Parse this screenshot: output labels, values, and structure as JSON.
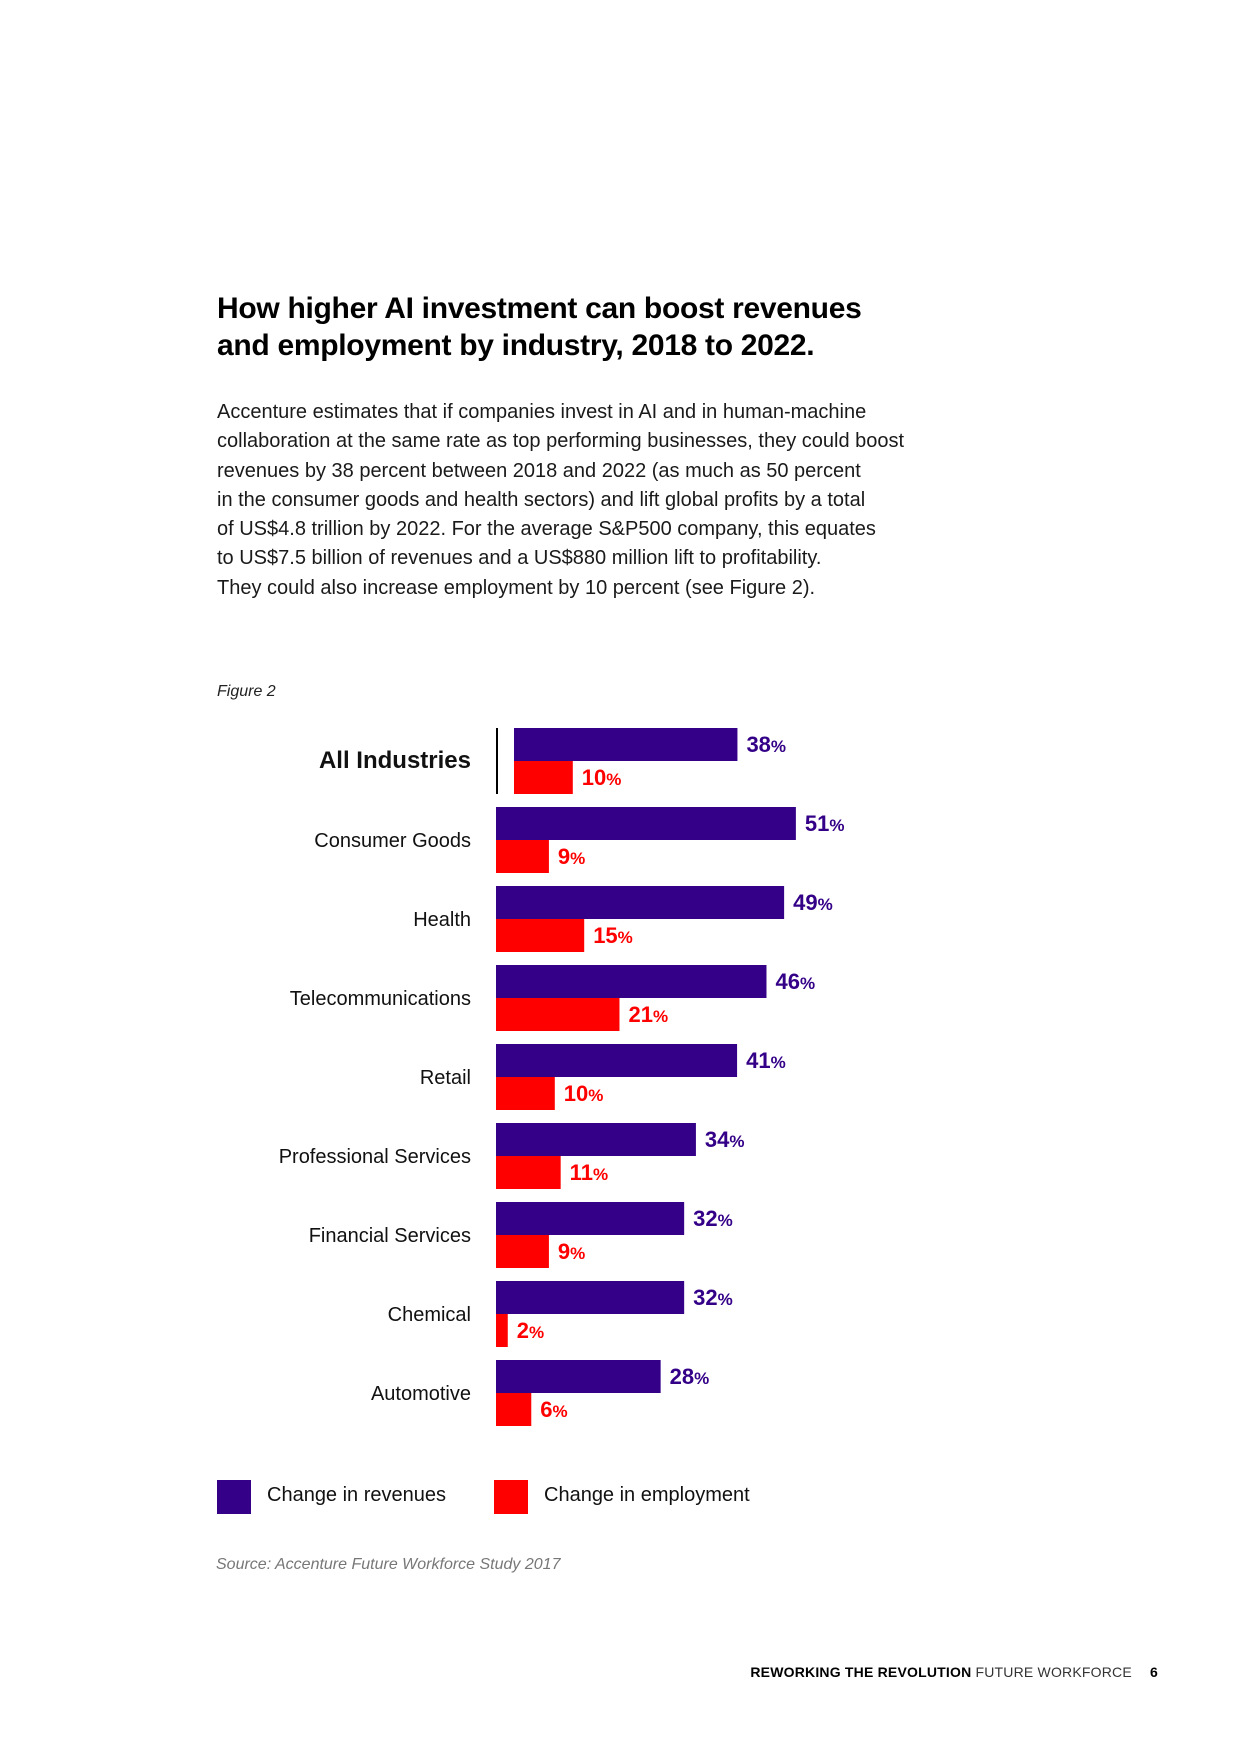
{
  "heading": {
    "line1": "How higher AI investment can boost revenues",
    "line2": "and employment by industry, 2018 to 2022."
  },
  "intro": {
    "lines": [
      "Accenture estimates that if companies invest in AI and in human-machine",
      "collaboration at the same rate as top performing businesses, they could boost",
      "revenues by 38 percent between 2018 and 2022 (as much as 50 percent",
      "in the consumer goods and health sectors) and lift global profits by a total",
      "of US$4.8 trillion by 2022. For the average S&P500 company, this equates",
      "to US$7.5 billion of revenues and a US$880 million lift to profitability.",
      "They could also increase employment by 10 percent (see Figure 2)."
    ]
  },
  "figure_label": "Figure 2",
  "colors": {
    "revenues": "#330087",
    "employment": "#ff0000"
  },
  "chart_data": {
    "type": "bar",
    "orientation": "horizontal",
    "title": "Figure 2",
    "categories": [
      "All Industries",
      "Consumer Goods",
      "Health",
      "Telecommunications",
      "Retail",
      "Professional Services",
      "Financial Services",
      "Chemical",
      "Automotive"
    ],
    "series": [
      {
        "name": "Change in revenues",
        "values": [
          38,
          51,
          49,
          46,
          41,
          34,
          32,
          32,
          28
        ]
      },
      {
        "name": "Change in employment",
        "values": [
          10,
          9,
          15,
          21,
          10,
          11,
          9,
          2,
          6
        ]
      }
    ],
    "value_suffix": "%",
    "xlim": [
      0,
      100
    ],
    "legend_position": "bottom-left",
    "highlight_category": "All Industries"
  },
  "legend": {
    "revenues_label": "Change in revenues",
    "employment_label": "Change in employment"
  },
  "source": "Source: Accenture Future Workforce Study 2017",
  "footer": {
    "bold": "REWORKING THE REVOLUTION",
    "light": "FUTURE WORKFORCE",
    "page_number": "6"
  }
}
